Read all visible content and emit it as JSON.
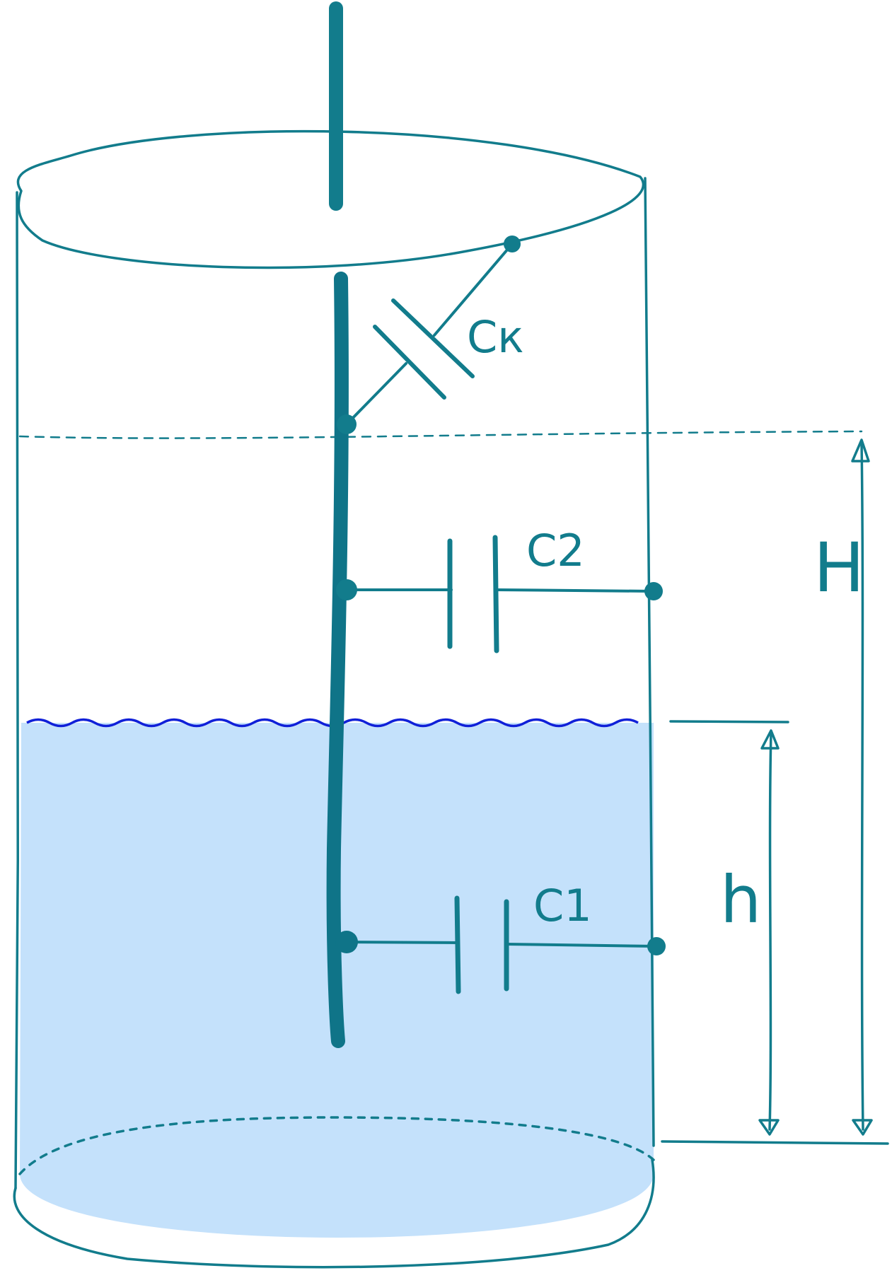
{
  "colors": {
    "ink": "#127c8c",
    "probe": "#0f7488",
    "probe_deep": "#0a6a88",
    "liquid_fill": "#c4e1fb",
    "liquid_surface": "#1020d8"
  },
  "labels": {
    "capacitor_k": "Cк",
    "capacitor_2": "C2",
    "capacitor_1": "C1",
    "tank_height": "H",
    "liquid_level": "h"
  }
}
